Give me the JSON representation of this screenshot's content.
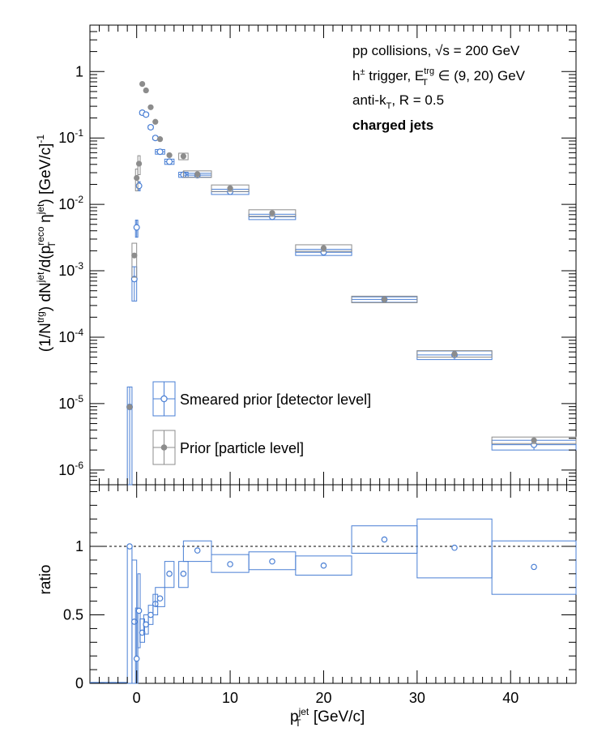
{
  "chart_data": [
    {
      "type": "scatter",
      "panel": "upper",
      "ylabel": "(1/N^trg) dN^jet/d(p_T^reco η^jet) [GeV/c]^-1",
      "yscale": "log",
      "ylim": [
        6e-07,
        5
      ],
      "xlim": [
        -5,
        47
      ],
      "y_tick_labels": [
        "10^-6",
        "10^-5",
        "10^-4",
        "10^-3",
        "10^-2",
        "10^-1",
        "1"
      ],
      "annotations": [
        {
          "text": "pp collisions, √s = 200 GeV"
        },
        {
          "text": "h± trigger, E_T^trg ∈ (9, 20) GeV"
        },
        {
          "text": "anti-k_T, R = 0.5"
        },
        {
          "text": "charged jets"
        }
      ],
      "legend": {
        "placement": "bottom-left",
        "entries": [
          "Smeared prior [detector level]",
          "Prior [particle level]"
        ]
      },
      "series": [
        {
          "name": "Smeared prior [detector level]",
          "color": "#4a7fd4",
          "marker": "open-circle",
          "x": [
            -0.75,
            -0.25,
            0.0,
            0.25,
            0.6,
            1.0,
            1.5,
            2.0,
            2.5,
            3.5,
            5.0,
            6.5,
            10.0,
            14.5,
            20.0,
            26.5,
            34.0,
            42.5
          ],
          "y": [
            8.9e-06,
            0.00075,
            0.0045,
            0.019,
            0.24,
            0.225,
            0.145,
            0.1,
            0.062,
            0.044,
            0.028,
            0.0275,
            0.0155,
            0.0065,
            0.0019,
            0.00037,
            5.4e-05,
            2.4e-06
          ],
          "xerr": [
            0.25,
            0.25,
            0.125,
            0.125,
            0.25,
            0.25,
            0.25,
            0.25,
            0.5,
            0.5,
            0.5,
            1.5,
            2.0,
            2.5,
            3.0,
            3.5,
            4.0,
            4.5
          ],
          "yerr": [
            8.9e-06,
            0.0004,
            0.0013,
            0.003,
            0.015,
            0.014,
            0.009,
            0.006,
            0.005,
            0.004,
            0.0025,
            0.0018,
            0.0014,
            0.0006,
            0.0002,
            3.5e-05,
            8e-06,
            4e-07
          ]
        },
        {
          "name": "Prior [particle level]",
          "color": "#8c8c8c",
          "marker": "filled-circle",
          "x": [
            -0.75,
            -0.25,
            0.0,
            0.25,
            0.6,
            1.0,
            1.5,
            2.0,
            2.5,
            3.5,
            5.0,
            6.5,
            10.0,
            14.5,
            20.0,
            26.5,
            34.0,
            42.5
          ],
          "y": [
            8.9e-06,
            0.0017,
            0.025,
            0.041,
            0.65,
            0.52,
            0.29,
            0.175,
            0.096,
            0.055,
            0.053,
            0.0285,
            0.0175,
            0.0074,
            0.0022,
            0.00037,
            5.6e-05,
            2.8e-06
          ],
          "xerr": [
            0.25,
            0.25,
            0.125,
            0.125,
            0.25,
            0.25,
            0.25,
            0.25,
            0.5,
            0.5,
            0.5,
            1.5,
            2.0,
            2.5,
            3.0,
            3.5,
            4.0,
            4.5
          ],
          "yerr": [
            0,
            0.0009,
            0.009,
            0.013,
            0,
            0,
            0,
            0,
            0,
            0,
            0.006,
            0,
            0,
            0,
            0,
            0,
            0,
            0
          ]
        }
      ]
    },
    {
      "type": "scatter",
      "panel": "lower",
      "xlabel": "p_T^jet [GeV/c]",
      "ylabel": "ratio",
      "xlim": [
        -5,
        47
      ],
      "ylim": [
        0,
        1.45
      ],
      "x_tick_labels": [
        "0",
        "10",
        "20",
        "30",
        "40"
      ],
      "y_tick_labels": [
        "0",
        "0.5",
        "1"
      ],
      "reference_line": 1,
      "series": [
        {
          "name": "ratio",
          "color": "#4a7fd4",
          "marker": "open-circle",
          "x": [
            -0.75,
            -0.25,
            0.0,
            0.25,
            0.6,
            1.0,
            1.5,
            2.0,
            2.5,
            3.5,
            5.0,
            6.5,
            10.0,
            14.5,
            20.0,
            26.5,
            34.0,
            42.5
          ],
          "y": [
            1.0,
            0.45,
            0.18,
            0.53,
            0.37,
            0.43,
            0.5,
            0.58,
            0.62,
            0.8,
            0.8,
            0.97,
            0.87,
            0.89,
            0.86,
            1.05,
            0.99,
            0.85
          ],
          "xerr": [
            0.25,
            0.25,
            0.125,
            0.125,
            0.25,
            0.25,
            0.25,
            0.25,
            0.5,
            0.5,
            0.5,
            1.5,
            2.0,
            2.5,
            3.0,
            3.5,
            4.0,
            4.5
          ],
          "ylo": [
            0.0,
            0.0,
            0.0,
            0.26,
            0.3,
            0.36,
            0.43,
            0.5,
            0.56,
            0.7,
            0.7,
            0.89,
            0.81,
            0.83,
            0.79,
            0.95,
            0.77,
            0.65
          ],
          "yhi": [
            1.0,
            0.9,
            0.55,
            0.8,
            0.47,
            0.5,
            0.57,
            0.65,
            0.7,
            0.89,
            0.89,
            1.04,
            0.94,
            0.96,
            0.93,
            1.15,
            1.2,
            1.04
          ]
        }
      ]
    }
  ]
}
